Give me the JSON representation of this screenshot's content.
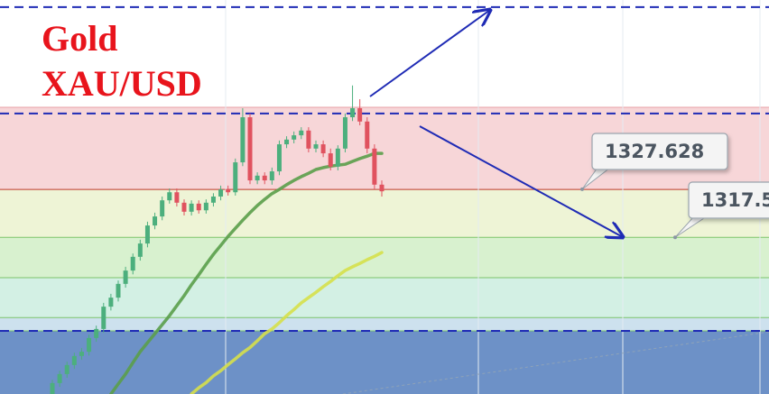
{
  "chart_data": {
    "type": "candlestick",
    "title": "Gold",
    "subtitle": "XAU/USD",
    "ylim": [
      1284.5,
      1367.5
    ],
    "up_color": "#4caf7d",
    "down_color": "#e0525f",
    "open": [
      1284.5,
      1286.8,
      1288.7,
      1290.6,
      1292.5,
      1293.4,
      1296.3,
      1298.2,
      1302.9,
      1304.8,
      1307.7,
      1310.5,
      1313.4,
      1316.2,
      1320.0,
      1321.9,
      1325.3,
      1327.0,
      1324.8,
      1322.9,
      1324.6,
      1323.2,
      1324.8,
      1326.1,
      1327.6,
      1327.0,
      1333.3,
      1342.8,
      1329.5,
      1330.5,
      1329.5,
      1331.4,
      1337.1,
      1338.1,
      1339.0,
      1340.0,
      1336.2,
      1337.1,
      1335.2,
      1332.4,
      1336.2,
      1342.8,
      1344.7,
      1341.9,
      1336.2,
      1328.6
    ],
    "high": [
      1287.5,
      1289.4,
      1291.3,
      1293.2,
      1294.2,
      1297.0,
      1298.9,
      1303.7,
      1305.6,
      1308.4,
      1311.3,
      1314.1,
      1317.0,
      1320.8,
      1322.7,
      1326.1,
      1327.8,
      1327.8,
      1325.5,
      1325.3,
      1325.3,
      1325.5,
      1326.8,
      1328.4,
      1328.4,
      1334.1,
      1344.7,
      1343.6,
      1331.2,
      1331.2,
      1332.2,
      1337.9,
      1338.8,
      1339.8,
      1340.7,
      1340.7,
      1337.9,
      1337.9,
      1336.2,
      1336.9,
      1343.6,
      1349.5,
      1346.6,
      1342.8,
      1337.1,
      1329.5
    ],
    "low": [
      1283.7,
      1286.0,
      1287.9,
      1289.8,
      1291.7,
      1292.6,
      1295.5,
      1297.4,
      1302.1,
      1304.0,
      1306.9,
      1309.7,
      1312.6,
      1315.4,
      1319.2,
      1321.1,
      1324.6,
      1324.0,
      1322.1,
      1322.1,
      1322.5,
      1322.5,
      1324.0,
      1325.3,
      1326.3,
      1326.3,
      1332.5,
      1328.7,
      1328.7,
      1328.7,
      1328.6,
      1330.6,
      1336.3,
      1337.3,
      1338.2,
      1335.4,
      1335.4,
      1334.4,
      1331.6,
      1331.6,
      1335.4,
      1342.0,
      1341.1,
      1335.2,
      1327.6,
      1326.1
    ],
    "close": [
      1286.8,
      1288.7,
      1290.6,
      1292.5,
      1293.4,
      1296.3,
      1298.2,
      1302.9,
      1304.8,
      1307.7,
      1310.5,
      1313.4,
      1316.2,
      1320.0,
      1321.9,
      1325.3,
      1327.0,
      1324.8,
      1322.9,
      1324.6,
      1323.2,
      1324.8,
      1326.1,
      1327.6,
      1327.0,
      1333.3,
      1342.8,
      1329.5,
      1330.5,
      1329.5,
      1331.4,
      1337.1,
      1338.1,
      1339.0,
      1340.0,
      1336.2,
      1337.1,
      1335.2,
      1332.4,
      1336.2,
      1342.8,
      1344.7,
      1341.9,
      1336.2,
      1328.6,
      1327.2
    ],
    "moving_averages": [
      {
        "color": "#5a9e4a",
        "values": [
          null,
          null,
          null,
          null,
          null,
          null,
          null,
          null,
          1284.5,
          1286.6,
          1288.7,
          1291.1,
          1293.4,
          1295.3,
          1297.2,
          1299.1,
          1301.0,
          1303.1,
          1305.2,
          1307.5,
          1309.6,
          1311.8,
          1313.9,
          1315.8,
          1317.7,
          1319.4,
          1321.1,
          1322.7,
          1324.2,
          1325.5,
          1326.7,
          1327.6,
          1328.6,
          1329.5,
          1330.3,
          1331.0,
          1331.8,
          1332.2,
          1332.5,
          1332.7,
          1332.9,
          1333.5,
          1334.1,
          1334.6,
          1335.2,
          1335.2
        ]
      },
      {
        "color": "#d6e04a",
        "values": [
          null,
          null,
          null,
          null,
          null,
          null,
          null,
          null,
          null,
          null,
          null,
          null,
          null,
          null,
          null,
          null,
          null,
          null,
          null,
          1284.5,
          1285.8,
          1286.9,
          1288.3,
          1289.4,
          1290.7,
          1291.9,
          1293.2,
          1294.3,
          1295.7,
          1297.2,
          1298.2,
          1299.5,
          1301.0,
          1302.3,
          1303.7,
          1304.8,
          1305.9,
          1307.1,
          1308.2,
          1309.4,
          1310.5,
          1311.3,
          1312.0,
          1312.8,
          1313.5,
          1314.3
        ]
      }
    ],
    "zones": [
      {
        "from": 1344.9,
        "to": 1327.6,
        "color": "#f7d6d8"
      },
      {
        "from": 1327.6,
        "to": 1317.5,
        "color": "#eef4d6"
      },
      {
        "from": 1317.5,
        "to": 1309.0,
        "color": "#d8f1cf"
      },
      {
        "from": 1309.0,
        "to": 1300.6,
        "color": "#d3f0e4"
      },
      {
        "from": 1300.6,
        "to": 1297.8,
        "color": "#cde1ee"
      },
      {
        "from": 1297.8,
        "to": 1284.5,
        "color": "#6d91c7"
      }
    ],
    "dashed_levels": [
      1366.0,
      1343.6,
      1297.8
    ],
    "price_labels": [
      {
        "value": 1327.628,
        "label": "1327.628"
      },
      {
        "value": 1317.5,
        "label": "1317.5"
      }
    ]
  }
}
